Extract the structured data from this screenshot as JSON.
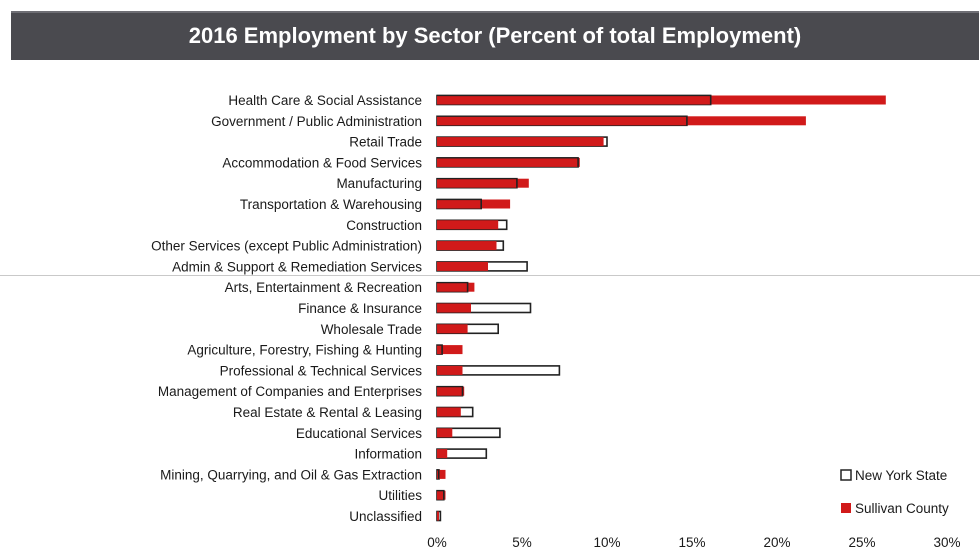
{
  "chart_data": {
    "type": "bar",
    "orientation": "horizontal",
    "title": "2016 Employment by Sector (Percent of total Employment)",
    "categories": [
      "Health Care & Social Assistance",
      "Government / Public Administration",
      "Retail Trade",
      "Accommodation & Food Services",
      "Manufacturing",
      "Transportation & Warehousing",
      "Construction",
      "Other Services (except Public Administration)",
      "Admin & Support & Remediation Services",
      "Arts, Entertainment & Recreation",
      "Finance & Insurance",
      "Wholesale Trade",
      "Agriculture, Forestry, Fishing & Hunting",
      "Professional & Technical Services",
      "Management of Companies and Enterprises",
      "Real Estate & Rental & Leasing",
      "Educational Services",
      "Information",
      "Mining, Quarrying, and Oil & Gas Extraction",
      "Utilities",
      "Unclassified"
    ],
    "series": [
      {
        "name": "New York State",
        "values": [
          16.1,
          14.7,
          10.0,
          8.3,
          4.7,
          2.6,
          4.1,
          3.9,
          5.3,
          1.8,
          5.5,
          3.6,
          0.3,
          7.2,
          1.5,
          2.1,
          3.7,
          2.9,
          0.1,
          0.4,
          0.2
        ]
      },
      {
        "name": "Sullivan County",
        "values": [
          26.4,
          21.7,
          9.8,
          8.4,
          5.4,
          4.3,
          3.6,
          3.5,
          3.0,
          2.2,
          2.0,
          1.8,
          1.5,
          1.5,
          1.6,
          1.4,
          0.9,
          0.6,
          0.5,
          0.5,
          0.1
        ]
      }
    ],
    "x_ticks": [
      "0%",
      "5%",
      "10%",
      "15%",
      "20%",
      "25%",
      "30%"
    ],
    "xlim": [
      0,
      30
    ],
    "legend_position": "bottom-right",
    "colors": {
      "New York State": "#ffffff",
      "Sullivan County": "#d11a1a",
      "outline": "#222222"
    }
  }
}
